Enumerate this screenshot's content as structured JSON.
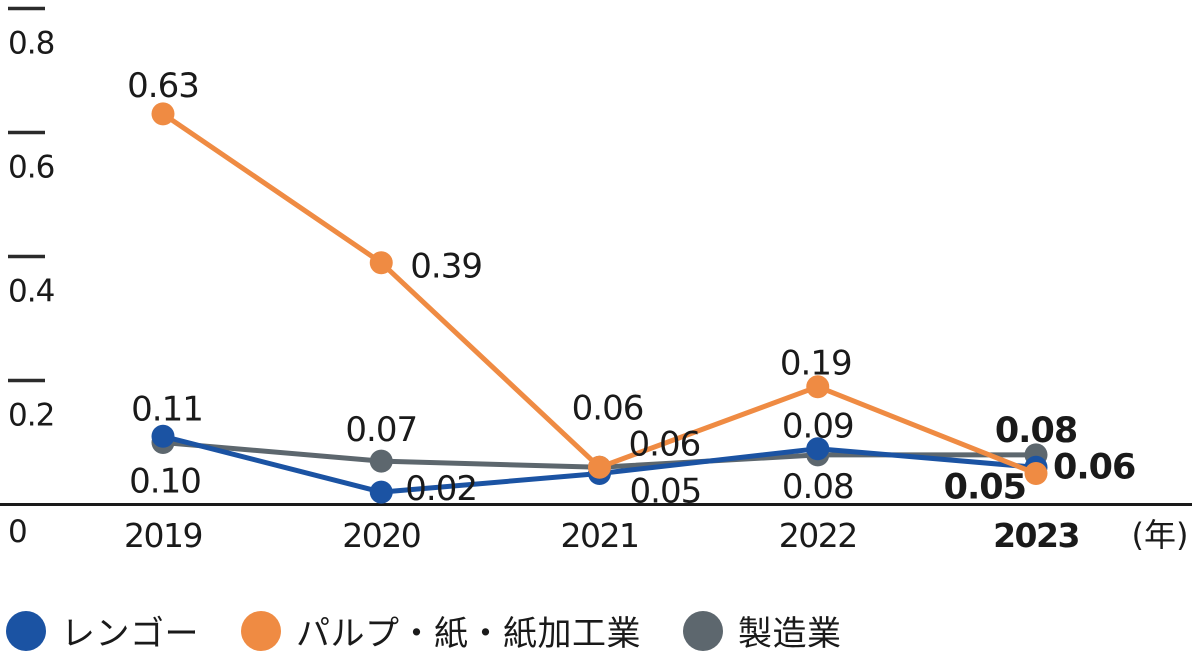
{
  "chart_data": {
    "type": "line",
    "categories": [
      "2019",
      "2020",
      "2021",
      "2022",
      "2023"
    ],
    "x_axis": {
      "labels": [
        {
          "text": "2019",
          "bold": false
        },
        {
          "text": "2020",
          "bold": false
        },
        {
          "text": "2021",
          "bold": false
        },
        {
          "text": "2022",
          "bold": false
        },
        {
          "text": "2023",
          "bold": true
        }
      ],
      "unit": "(年)"
    },
    "ylim": [
      0,
      0.8
    ],
    "yticks": [
      {
        "value": 0.8,
        "label": "0.8"
      },
      {
        "value": 0.6,
        "label": "0.6"
      },
      {
        "value": 0.4,
        "label": "0.4"
      },
      {
        "value": 0.2,
        "label": "0.2"
      },
      {
        "value": 0,
        "label": "0"
      }
    ],
    "grid": false,
    "legend_position": "bottom",
    "series": [
      {
        "name": "製造業",
        "color": "#5d676e",
        "values": [
          0.1,
          0.07,
          0.06,
          0.08,
          0.08
        ],
        "labels": [
          {
            "text": "0.10",
            "anchor": "middle",
            "dx": 2,
            "dy": 50,
            "bold": false
          },
          {
            "text": "0.07",
            "anchor": "middle",
            "dx": 0,
            "dy": -20,
            "bold": false
          },
          {
            "text": "0.06",
            "anchor": "start",
            "dx": 29,
            "dy": -12,
            "bold": false
          },
          {
            "text": "0.08",
            "anchor": "middle",
            "dx": 0,
            "dy": 43,
            "bold": false
          },
          {
            "text": "0.08",
            "anchor": "middle",
            "dx": 0,
            "dy": -13,
            "bold": true
          }
        ]
      },
      {
        "name": "レンゴー",
        "color": "#1b53a3",
        "values": [
          0.11,
          0.02,
          0.05,
          0.09,
          0.06
        ],
        "labels": [
          {
            "text": "0.11",
            "anchor": "middle",
            "dx": 4,
            "dy": -16,
            "bold": false
          },
          {
            "text": "0.02",
            "anchor": "start",
            "dx": 24,
            "dy": 8,
            "bold": false
          },
          {
            "text": "0.05",
            "anchor": "start",
            "dx": 30,
            "dy": 29,
            "bold": false
          },
          {
            "text": "0.09",
            "anchor": "middle",
            "dx": 0,
            "dy": -11,
            "bold": false
          },
          {
            "text": "0.06",
            "anchor": "start",
            "dx": 17,
            "dy": 11,
            "bold": true
          }
        ]
      },
      {
        "name": "パルプ・紙・紙加工業",
        "color": "#ef8b43",
        "values": [
          0.63,
          0.39,
          0.06,
          0.19,
          0.05
        ],
        "labels": [
          {
            "text": "0.63",
            "anchor": "middle",
            "dx": 0,
            "dy": -17,
            "bold": false
          },
          {
            "text": "0.39",
            "anchor": "start",
            "dx": 29,
            "dy": 15,
            "bold": false
          },
          {
            "text": "0.06",
            "anchor": "middle",
            "dx": 8,
            "dy": -48,
            "bold": false
          },
          {
            "text": "0.19",
            "anchor": "middle",
            "dx": -2,
            "dy": -12,
            "bold": false
          },
          {
            "text": "0.05",
            "anchor": "end",
            "dx": -10,
            "dy": 25,
            "bold": true
          }
        ]
      }
    ]
  },
  "legend": {
    "items": [
      {
        "label": "レンゴー",
        "color": "#1b53a3"
      },
      {
        "label": "パルプ・紙・紙加工業",
        "color": "#ef8b43"
      },
      {
        "label": "製造業",
        "color": "#5d676e"
      }
    ]
  },
  "colors": {
    "axis": "#1a1a1a",
    "tick": "#2b2b2b",
    "text": "#1a1a1a"
  }
}
